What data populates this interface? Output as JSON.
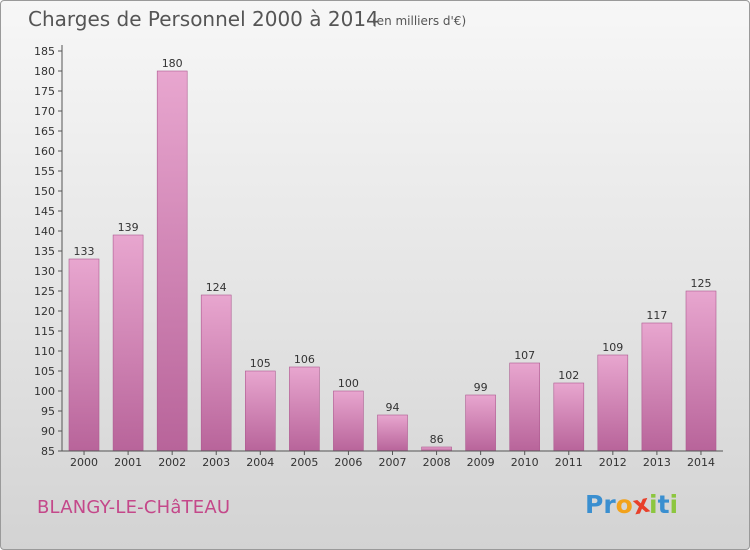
{
  "header": {
    "title": "Charges de Personnel 2000 à 2014",
    "subtitle": "(en milliers d'€)"
  },
  "footer": {
    "place": "BLANGY-LE-CHâTEAU",
    "logo_letters": [
      "P",
      "r",
      "o",
      "x",
      "i",
      "t",
      "i"
    ],
    "logo_colors": [
      "#3a8fd0",
      "#3a8fd0",
      "#f2a21b",
      "#e8402a",
      "#8cc63f",
      "#3a8fd0",
      "#8cc63f"
    ]
  },
  "colors": {
    "bar_top": "#e8a6cf",
    "bar_bottom": "#b8649a",
    "axis": "#555555",
    "text": "#333333"
  },
  "chart_data": {
    "type": "bar",
    "categories": [
      "2000",
      "2001",
      "2002",
      "2003",
      "2004",
      "2005",
      "2006",
      "2007",
      "2008",
      "2009",
      "2010",
      "2011",
      "2012",
      "2013",
      "2014"
    ],
    "values": [
      133,
      139,
      180,
      124,
      105,
      106,
      100,
      94,
      86,
      99,
      107,
      102,
      109,
      117,
      125
    ],
    "yticks": [
      85,
      90,
      95,
      100,
      105,
      110,
      115,
      120,
      125,
      130,
      135,
      140,
      145,
      150,
      155,
      160,
      165,
      170,
      175,
      180,
      185
    ],
    "ylim": [
      85,
      185
    ],
    "grid": false
  }
}
